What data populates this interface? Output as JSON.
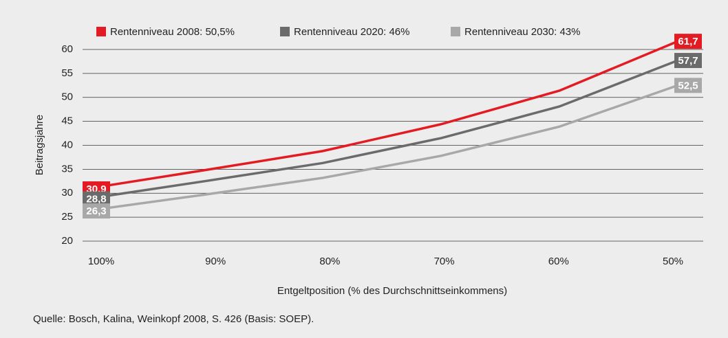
{
  "chart_data": {
    "type": "line",
    "categories": [
      "100%",
      "90%",
      "80%",
      "70%",
      "60%",
      "50%"
    ],
    "series": [
      {
        "name": "Rentenniveau 2008: 50,5%",
        "color": "#e31b23",
        "values": [
          30.9,
          34.8,
          38.8,
          44.4,
          51.4,
          61.7
        ],
        "value_labels": [
          "30,9",
          null,
          null,
          null,
          null,
          "61,7"
        ]
      },
      {
        "name": "Rentenniveau 2020: 46%",
        "color": "#6b6b6b",
        "values": [
          28.8,
          32.5,
          36.3,
          41.5,
          48.1,
          57.7
        ],
        "value_labels": [
          "28,8",
          null,
          null,
          null,
          null,
          "57,7"
        ]
      },
      {
        "name": "Rentenniveau 2030: 43%",
        "color": "#a8a8a8",
        "values": [
          26.3,
          29.7,
          33.2,
          37.8,
          43.9,
          52.5
        ],
        "value_labels": [
          "26,3",
          null,
          null,
          null,
          null,
          "52,5"
        ]
      }
    ],
    "ylim": [
      20,
      60
    ],
    "yticks": [
      20,
      25,
      30,
      35,
      40,
      45,
      50,
      55,
      60
    ],
    "grid": true,
    "y_label": "Beitragsjahre",
    "x_label": "Entgeltposition (% des Durchschnittseinkommens)",
    "source": "Quelle: Bosch, Kalina, Weinkopf 2008, S. 426 (Basis: SOEP).",
    "legend": "top"
  }
}
